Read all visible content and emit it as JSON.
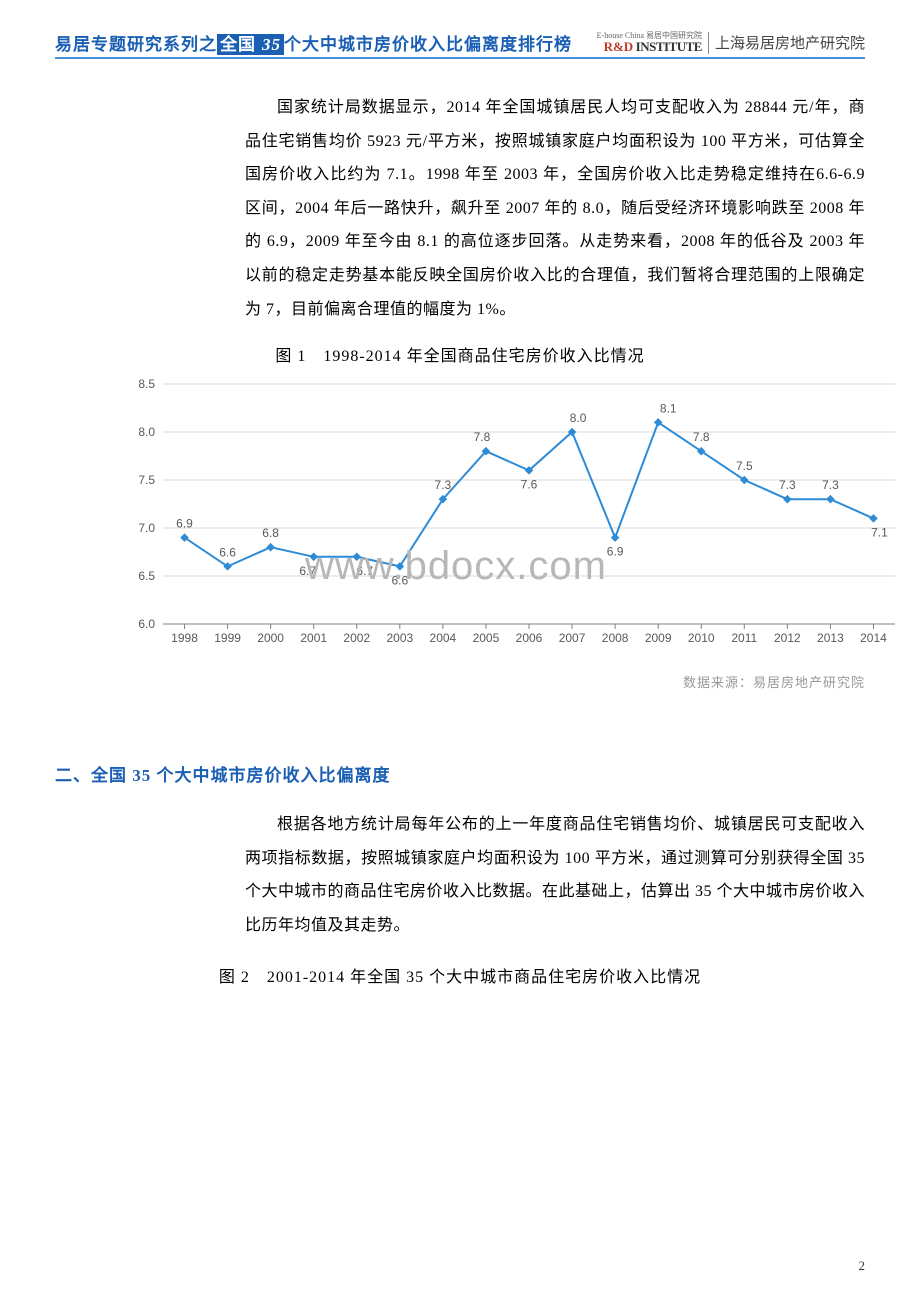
{
  "header": {
    "prefix": "易居专题研究系列之",
    "hl1": "全国",
    "hl2": "35",
    "suffix": "个大中城市房价收入比偏离度排行榜",
    "logo_small": "E-house China 易居中国研究院",
    "logo_rd": "R&D",
    "logo_inst": "INSTITUTE",
    "logo_cn": "上海易居房地产研究院"
  },
  "para1": "国家统计局数据显示，2014 年全国城镇居民人均可支配收入为 28844 元/年，商品住宅销售均价 5923 元/平方米，按照城镇家庭户均面积设为 100 平方米，可估算全国房价收入比约为 7.1。1998 年至 2003 年，全国房价收入比走势稳定维持在6.6-6.9 区间，2004 年后一路快升，飙升至 2007 年的 8.0，随后受经济环境影响跌至 2008 年的 6.9，2009 年至今由 8.1 的高位逐步回落。从走势来看，2008 年的低谷及 2003 年以前的稳定走势基本能反映全国房价收入比的合理值，我们暂将合理范围的上限确定为 7，目前偏离合理值的幅度为 1%。",
  "fig1_title": "图 1　1998-2014 年全国商品住宅房价收入比情况",
  "chart1": {
    "type": "line",
    "years": [
      "1998",
      "1999",
      "2000",
      "2001",
      "2002",
      "2003",
      "2004",
      "2005",
      "2006",
      "2007",
      "2008",
      "2009",
      "2010",
      "2011",
      "2012",
      "2013",
      "2014"
    ],
    "values": [
      6.9,
      6.6,
      6.8,
      6.7,
      6.7,
      6.6,
      7.3,
      7.8,
      7.6,
      8.0,
      6.9,
      8.1,
      7.8,
      7.5,
      7.3,
      7.3,
      7.1
    ],
    "ylim": [
      6.0,
      8.5
    ],
    "ytick_step": 0.5,
    "line_color": "#2e8bd6",
    "marker_color": "#2e8bd6",
    "marker_style": "diamond",
    "grid_color": "#d9d9d9",
    "axis_color": "#7f7f7f",
    "label_fontsize": 12,
    "label_color": "#595959",
    "background_color": "#ffffff",
    "line_width": 2,
    "marker_size": 6,
    "watermark": "www.bdocx.com"
  },
  "source_note": "数据来源：易居房地产研究院",
  "section2_title": "二、全国 35 个大中城市房价收入比偏离度",
  "para2": "根据各地方统计局每年公布的上一年度商品住宅销售均价、城镇居民可支配收入两项指标数据，按照城镇家庭户均面积设为 100 平方米，通过测算可分别获得全国 35 个大中城市的商品住宅房价收入比数据。在此基础上，估算出 35 个大中城市房价收入比历年均值及其走势。",
  "fig2_title": "图 2　2001-2014 年全国 35 个大中城市商品住宅房价收入比情况",
  "page_number": "2"
}
